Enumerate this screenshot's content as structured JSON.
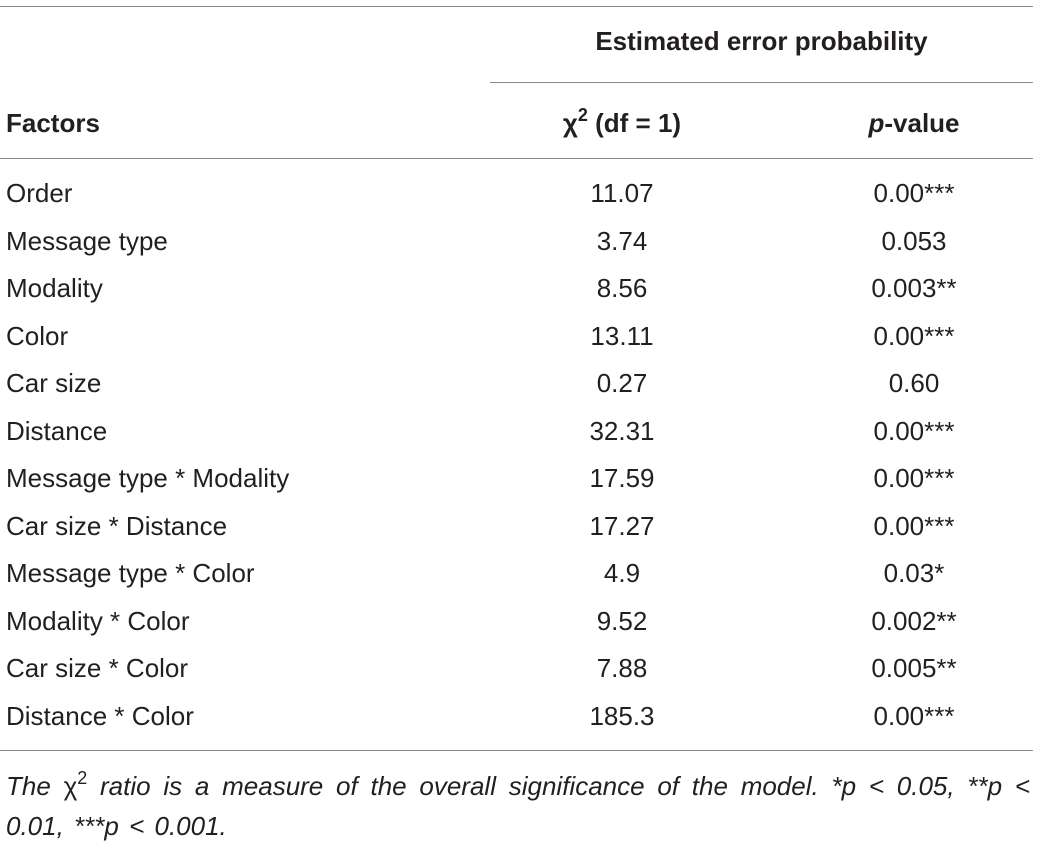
{
  "table": {
    "group_header": "Estimated error probability",
    "headers": {
      "factors": "Factors",
      "chi_symbol": "χ",
      "chi_sup": "2",
      "chi_rest": " (df = 1)",
      "p_italic": "p",
      "p_rest": "-value"
    },
    "rows": [
      {
        "factor": "Order",
        "chi2": "11.07",
        "p": "0.00***"
      },
      {
        "factor": "Message type",
        "chi2": "3.74",
        "p": "0.053"
      },
      {
        "factor": "Modality",
        "chi2": "8.56",
        "p": "0.003**"
      },
      {
        "factor": "Color",
        "chi2": "13.11",
        "p": "0.00***"
      },
      {
        "factor": "Car size",
        "chi2": "0.27",
        "p": "0.60"
      },
      {
        "factor": "Distance",
        "chi2": "32.31",
        "p": "0.00***"
      },
      {
        "factor": "Message type * Modality",
        "chi2": "17.59",
        "p": "0.00***"
      },
      {
        "factor": "Car size * Distance",
        "chi2": "17.27",
        "p": "0.00***"
      },
      {
        "factor": "Message type * Color",
        "chi2": "4.9",
        "p": "0.03*"
      },
      {
        "factor": "Modality * Color",
        "chi2": "9.52",
        "p": "0.002**"
      },
      {
        "factor": "Car size * Color",
        "chi2": "7.88",
        "p": "0.005**"
      },
      {
        "factor": "Distance * Color",
        "chi2": "185.3",
        "p": "0.00***"
      }
    ],
    "footnote": {
      "prefix": "The ",
      "chi_symbol": "χ",
      "chi_sup": "2",
      "suffix": " ratio is a measure of the overall significance of the model. *p < 0.05, **p < 0.01, ***p < 0.001."
    }
  }
}
